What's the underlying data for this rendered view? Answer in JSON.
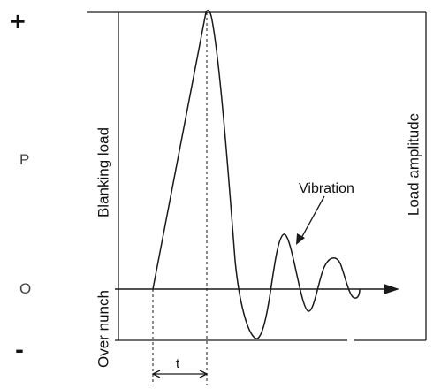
{
  "labels": {
    "plus": "+",
    "minus": "-",
    "p": "P",
    "o": "O",
    "blanking_load": "Blanking load",
    "over_punch": "Over nunch",
    "load_amplitude": "Load amplitude",
    "vibration": "Vibration",
    "time": "t"
  },
  "colors": {
    "line": "#1a1a1a",
    "text": "#111111"
  }
}
